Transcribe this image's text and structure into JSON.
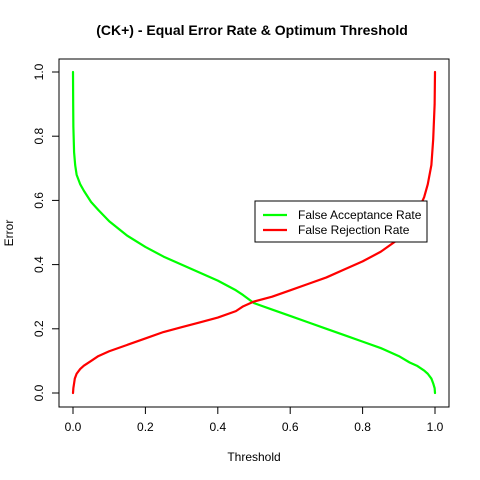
{
  "chart_data": {
    "type": "line",
    "title": "(CK+) - Equal Error Rate & Optimum Threshold",
    "xlabel": "Threshold",
    "ylabel": "Error",
    "xlim": [
      0.0,
      1.0
    ],
    "ylim": [
      0.0,
      1.0
    ],
    "x_ticks": [
      "0.0",
      "0.2",
      "0.4",
      "0.6",
      "0.8",
      "1.0"
    ],
    "y_ticks": [
      "0.0",
      "0.2",
      "0.4",
      "0.6",
      "0.8",
      "1.0"
    ],
    "grid": false,
    "legend_position": "right",
    "series": [
      {
        "name": "False Acceptance Rate",
        "color": "#00ff00",
        "points": [
          [
            0.0,
            1.0
          ],
          [
            0.0005,
            0.9
          ],
          [
            0.001,
            0.83
          ],
          [
            0.003,
            0.75
          ],
          [
            0.006,
            0.71
          ],
          [
            0.01,
            0.68
          ],
          [
            0.02,
            0.65
          ],
          [
            0.03,
            0.63
          ],
          [
            0.05,
            0.595
          ],
          [
            0.07,
            0.57
          ],
          [
            0.1,
            0.535
          ],
          [
            0.15,
            0.49
          ],
          [
            0.2,
            0.455
          ],
          [
            0.25,
            0.425
          ],
          [
            0.3,
            0.4
          ],
          [
            0.35,
            0.375
          ],
          [
            0.4,
            0.35
          ],
          [
            0.45,
            0.32
          ],
          [
            0.47,
            0.305
          ],
          [
            0.5,
            0.28
          ],
          [
            0.55,
            0.26
          ],
          [
            0.6,
            0.24
          ],
          [
            0.65,
            0.22
          ],
          [
            0.7,
            0.2
          ],
          [
            0.75,
            0.18
          ],
          [
            0.8,
            0.16
          ],
          [
            0.85,
            0.14
          ],
          [
            0.9,
            0.115
          ],
          [
            0.93,
            0.095
          ],
          [
            0.95,
            0.085
          ],
          [
            0.97,
            0.07
          ],
          [
            0.98,
            0.06
          ],
          [
            0.99,
            0.045
          ],
          [
            0.995,
            0.03
          ],
          [
            0.999,
            0.015
          ],
          [
            1.0,
            0.0
          ]
        ]
      },
      {
        "name": "False Rejection Rate",
        "color": "#ff0000",
        "points": [
          [
            0.0,
            0.0
          ],
          [
            0.001,
            0.015
          ],
          [
            0.003,
            0.03
          ],
          [
            0.005,
            0.045
          ],
          [
            0.01,
            0.06
          ],
          [
            0.02,
            0.075
          ],
          [
            0.03,
            0.085
          ],
          [
            0.05,
            0.1
          ],
          [
            0.07,
            0.115
          ],
          [
            0.1,
            0.13
          ],
          [
            0.15,
            0.15
          ],
          [
            0.2,
            0.17
          ],
          [
            0.25,
            0.19
          ],
          [
            0.3,
            0.205
          ],
          [
            0.35,
            0.22
          ],
          [
            0.4,
            0.235
          ],
          [
            0.45,
            0.255
          ],
          [
            0.47,
            0.27
          ],
          [
            0.5,
            0.285
          ],
          [
            0.55,
            0.3
          ],
          [
            0.6,
            0.32
          ],
          [
            0.65,
            0.34
          ],
          [
            0.7,
            0.36
          ],
          [
            0.75,
            0.385
          ],
          [
            0.8,
            0.41
          ],
          [
            0.85,
            0.44
          ],
          [
            0.9,
            0.48
          ],
          [
            0.93,
            0.52
          ],
          [
            0.95,
            0.56
          ],
          [
            0.97,
            0.61
          ],
          [
            0.98,
            0.65
          ],
          [
            0.99,
            0.71
          ],
          [
            0.995,
            0.79
          ],
          [
            0.999,
            0.9
          ],
          [
            1.0,
            1.0
          ]
        ]
      }
    ]
  }
}
